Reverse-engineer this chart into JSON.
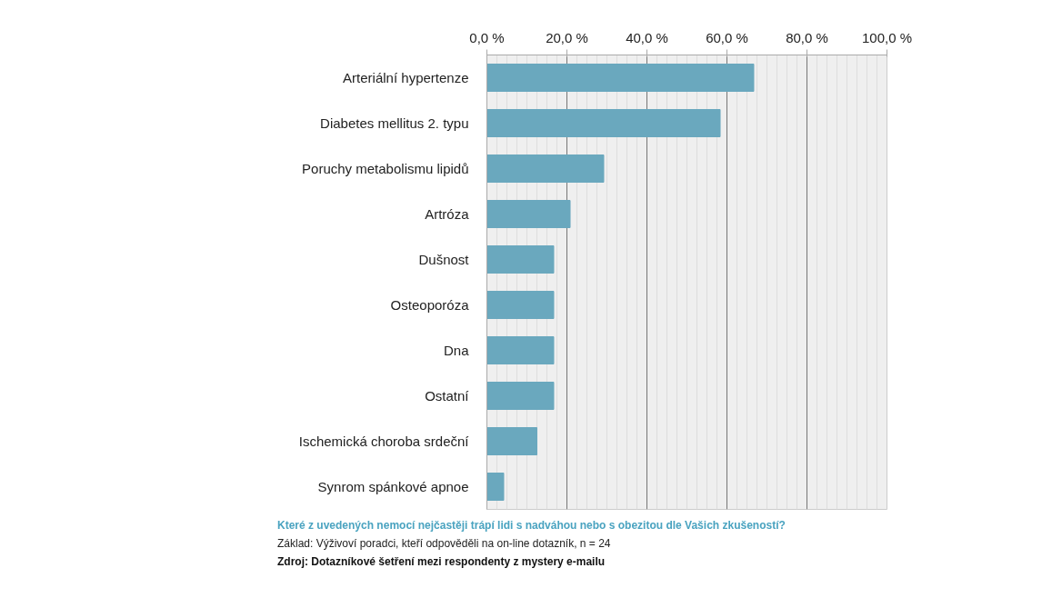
{
  "chart_data": {
    "type": "bar",
    "orientation": "horizontal",
    "categories": [
      "Arteriální hypertenze",
      "Diabetes mellitus 2. typu",
      "Poruchy metabolismu lipidů",
      "Artróza",
      "Dušnost",
      "Osteoporóza",
      "Dna",
      "Ostatní",
      "Ischemická choroba srdeční",
      "Synrom spánkové apnoe"
    ],
    "values": [
      66.7,
      58.3,
      29.2,
      20.8,
      16.7,
      16.7,
      16.7,
      16.7,
      12.5,
      4.2
    ],
    "color": "#6aa8be",
    "xlim": [
      0,
      100
    ],
    "xticks": [
      {
        "value": 0,
        "label": "0,0 %"
      },
      {
        "value": 20,
        "label": "20,0 %"
      },
      {
        "value": 40,
        "label": "40,0 %"
      },
      {
        "value": 60,
        "label": "60,0 %"
      },
      {
        "value": 80,
        "label": "80,0 %"
      },
      {
        "value": 100,
        "label": "100,0 %"
      }
    ],
    "grid": "x",
    "annotations": [
      "Které z uvedených nemocí nejčastěji trápí lidi s nadváhou  nebo s obezitou dle Vašich zkušeností?",
      "Základ: Výživoví poradci, kteří odpověděli na on-line dotazník, n = 24",
      "Zdroj: Dotazníkové šetření mezi respondenty z mystery e-mailu"
    ]
  }
}
